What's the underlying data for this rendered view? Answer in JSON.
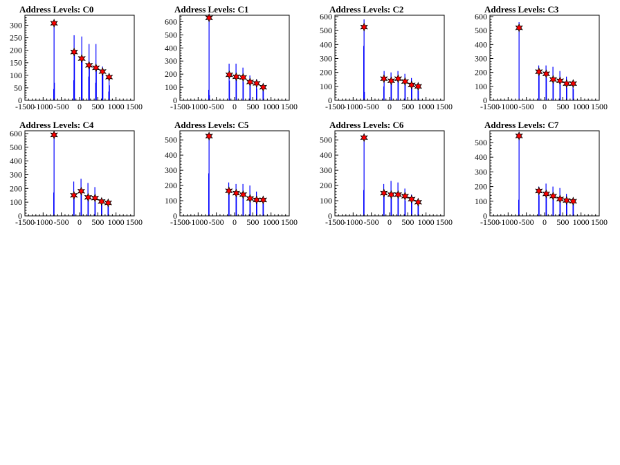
{
  "colors": {
    "histogram": "#0000ff",
    "marker": "#ff0000",
    "marker_outline": "#000000",
    "axes": "#000000"
  },
  "chart_data": [
    {
      "type": "bar",
      "title": "Address Levels: C0",
      "xlim": [
        -1500,
        1500
      ],
      "ylim": [
        0,
        340
      ],
      "x_ticks": [
        -1500,
        -1000,
        -500,
        0,
        500,
        1000,
        1500
      ],
      "x_tick_labels": [
        "-1500",
        "-1000",
        "-500",
        "0",
        "500",
        "1000",
        "1500"
      ],
      "y_ticks": [
        0,
        50,
        100,
        150,
        200,
        250,
        300
      ],
      "y_tick_labels": [
        "0",
        "50",
        "100",
        "150",
        "200",
        "250",
        "300"
      ],
      "histogram": [
        {
          "x": -710,
          "y": 45
        },
        {
          "x": -700,
          "y": 310
        },
        {
          "x": -690,
          "y": 70
        },
        {
          "x": -160,
          "y": 80
        },
        {
          "x": -150,
          "y": 260
        },
        {
          "x": -140,
          "y": 195
        },
        {
          "x": 50,
          "y": 160
        },
        {
          "x": 60,
          "y": 255
        },
        {
          "x": 70,
          "y": 170
        },
        {
          "x": 250,
          "y": 95
        },
        {
          "x": 260,
          "y": 225
        },
        {
          "x": 270,
          "y": 140
        },
        {
          "x": 440,
          "y": 70
        },
        {
          "x": 450,
          "y": 225
        },
        {
          "x": 460,
          "y": 135
        },
        {
          "x": 620,
          "y": 110
        },
        {
          "x": 630,
          "y": 135
        },
        {
          "x": 640,
          "y": 120
        },
        {
          "x": 800,
          "y": 35
        },
        {
          "x": 810,
          "y": 100
        },
        {
          "x": 820,
          "y": 60
        }
      ],
      "peaks": [
        {
          "x": -700,
          "y": 308
        },
        {
          "x": -150,
          "y": 193
        },
        {
          "x": 60,
          "y": 167
        },
        {
          "x": 260,
          "y": 140
        },
        {
          "x": 450,
          "y": 130
        },
        {
          "x": 630,
          "y": 115
        },
        {
          "x": 810,
          "y": 93
        }
      ]
    },
    {
      "type": "bar",
      "title": "Address Levels: C1",
      "xlim": [
        -1500,
        1500
      ],
      "ylim": [
        0,
        650
      ],
      "x_ticks": [
        -1500,
        -1000,
        -500,
        0,
        500,
        1000,
        1500
      ],
      "x_tick_labels": [
        "-1500",
        "-1000",
        "-500",
        "0",
        "500",
        "1000",
        "1500"
      ],
      "y_ticks": [
        0,
        100,
        200,
        300,
        400,
        500,
        600
      ],
      "y_tick_labels": [
        "0",
        "100",
        "200",
        "300",
        "400",
        "500",
        "600"
      ],
      "histogram": [
        {
          "x": -710,
          "y": 80
        },
        {
          "x": -700,
          "y": 640
        },
        {
          "x": -690,
          "y": 40
        },
        {
          "x": -150,
          "y": 280
        },
        {
          "x": -140,
          "y": 150
        },
        {
          "x": 40,
          "y": 280
        },
        {
          "x": 50,
          "y": 160
        },
        {
          "x": 230,
          "y": 250
        },
        {
          "x": 240,
          "y": 140
        },
        {
          "x": 420,
          "y": 190
        },
        {
          "x": 430,
          "y": 120
        },
        {
          "x": 600,
          "y": 160
        },
        {
          "x": 610,
          "y": 90
        },
        {
          "x": 780,
          "y": 120
        },
        {
          "x": 790,
          "y": 70
        }
      ],
      "peaks": [
        {
          "x": -700,
          "y": 630
        },
        {
          "x": -145,
          "y": 195
        },
        {
          "x": 45,
          "y": 180
        },
        {
          "x": 235,
          "y": 175
        },
        {
          "x": 425,
          "y": 140
        },
        {
          "x": 605,
          "y": 130
        },
        {
          "x": 785,
          "y": 100
        }
      ]
    },
    {
      "type": "bar",
      "title": "Address Levels: C2",
      "xlim": [
        -1500,
        1500
      ],
      "ylim": [
        0,
        610
      ],
      "x_ticks": [
        -1500,
        -1000,
        -500,
        0,
        500,
        1000,
        1500
      ],
      "x_tick_labels": [
        "-1500",
        "-1000",
        "-500",
        "0",
        "500",
        "1000",
        "1500"
      ],
      "y_ticks": [
        0,
        100,
        200,
        300,
        400,
        500,
        600
      ],
      "y_tick_labels": [
        "0",
        "100",
        "200",
        "300",
        "400",
        "500",
        "600"
      ],
      "histogram": [
        {
          "x": -710,
          "y": 390
        },
        {
          "x": -700,
          "y": 580
        },
        {
          "x": -690,
          "y": 60
        },
        {
          "x": -160,
          "y": 100
        },
        {
          "x": -150,
          "y": 210
        },
        {
          "x": 40,
          "y": 200
        },
        {
          "x": 50,
          "y": 120
        },
        {
          "x": 230,
          "y": 210
        },
        {
          "x": 240,
          "y": 130
        },
        {
          "x": 420,
          "y": 190
        },
        {
          "x": 430,
          "y": 110
        },
        {
          "x": 600,
          "y": 160
        },
        {
          "x": 610,
          "y": 90
        },
        {
          "x": 780,
          "y": 110
        },
        {
          "x": 790,
          "y": 70
        }
      ],
      "peaks": [
        {
          "x": -700,
          "y": 525
        },
        {
          "x": -155,
          "y": 155
        },
        {
          "x": 45,
          "y": 140
        },
        {
          "x": 235,
          "y": 155
        },
        {
          "x": 425,
          "y": 135
        },
        {
          "x": 605,
          "y": 110
        },
        {
          "x": 785,
          "y": 100
        }
      ]
    },
    {
      "type": "bar",
      "title": "Address Levels: C3",
      "xlim": [
        -1500,
        1500
      ],
      "ylim": [
        0,
        610
      ],
      "x_ticks": [
        -1500,
        -1000,
        -500,
        0,
        500,
        1000,
        1500
      ],
      "x_tick_labels": [
        "-1500",
        "-1000",
        "-500",
        "0",
        "500",
        "1000",
        "1500"
      ],
      "y_ticks": [
        0,
        100,
        200,
        300,
        400,
        500,
        600
      ],
      "y_tick_labels": [
        "0",
        "100",
        "200",
        "300",
        "400",
        "500",
        "600"
      ],
      "histogram": [
        {
          "x": -700,
          "y": 560
        },
        {
          "x": -160,
          "y": 250
        },
        {
          "x": -150,
          "y": 200
        },
        {
          "x": 40,
          "y": 250
        },
        {
          "x": 50,
          "y": 160
        },
        {
          "x": 230,
          "y": 240
        },
        {
          "x": 240,
          "y": 130
        },
        {
          "x": 420,
          "y": 210
        },
        {
          "x": 430,
          "y": 110
        },
        {
          "x": 600,
          "y": 170
        },
        {
          "x": 610,
          "y": 90
        },
        {
          "x": 780,
          "y": 140
        },
        {
          "x": 790,
          "y": 80
        }
      ],
      "peaks": [
        {
          "x": -700,
          "y": 520
        },
        {
          "x": -155,
          "y": 205
        },
        {
          "x": 45,
          "y": 190
        },
        {
          "x": 235,
          "y": 150
        },
        {
          "x": 425,
          "y": 140
        },
        {
          "x": 605,
          "y": 120
        },
        {
          "x": 785,
          "y": 120
        }
      ]
    },
    {
      "type": "bar",
      "title": "Address Levels: C4",
      "xlim": [
        -1500,
        1500
      ],
      "ylim": [
        0,
        620
      ],
      "x_ticks": [
        -1500,
        -1000,
        -500,
        0,
        500,
        1000,
        1500
      ],
      "x_tick_labels": [
        "-1500",
        "-1000",
        "-500",
        "0",
        "500",
        "1000",
        "1500"
      ],
      "y_ticks": [
        0,
        100,
        200,
        300,
        400,
        500,
        600
      ],
      "y_tick_labels": [
        "0",
        "100",
        "200",
        "300",
        "400",
        "500",
        "600"
      ],
      "histogram": [
        {
          "x": -710,
          "y": 170
        },
        {
          "x": -700,
          "y": 610
        },
        {
          "x": -160,
          "y": 250
        },
        {
          "x": -150,
          "y": 130
        },
        {
          "x": 40,
          "y": 270
        },
        {
          "x": 50,
          "y": 170
        },
        {
          "x": 230,
          "y": 240
        },
        {
          "x": 240,
          "y": 120
        },
        {
          "x": 420,
          "y": 210
        },
        {
          "x": 430,
          "y": 100
        },
        {
          "x": 600,
          "y": 130
        },
        {
          "x": 610,
          "y": 80
        },
        {
          "x": 780,
          "y": 110
        },
        {
          "x": 790,
          "y": 70
        }
      ],
      "peaks": [
        {
          "x": -700,
          "y": 590
        },
        {
          "x": -155,
          "y": 150
        },
        {
          "x": 45,
          "y": 180
        },
        {
          "x": 235,
          "y": 135
        },
        {
          "x": 425,
          "y": 130
        },
        {
          "x": 605,
          "y": 105
        },
        {
          "x": 785,
          "y": 95
        }
      ]
    },
    {
      "type": "bar",
      "title": "Address Levels: C5",
      "xlim": [
        -1500,
        1500
      ],
      "ylim": [
        0,
        560
      ],
      "x_ticks": [
        -1500,
        -1000,
        -500,
        0,
        500,
        1000,
        1500
      ],
      "x_tick_labels": [
        "-1500",
        "-1000",
        "-500",
        "0",
        "500",
        "1000",
        "1500"
      ],
      "y_ticks": [
        0,
        100,
        200,
        300,
        400,
        500
      ],
      "y_tick_labels": [
        "0",
        "100",
        "200",
        "300",
        "400",
        "500"
      ],
      "histogram": [
        {
          "x": -710,
          "y": 280
        },
        {
          "x": -700,
          "y": 540
        },
        {
          "x": -160,
          "y": 220
        },
        {
          "x": -150,
          "y": 150
        },
        {
          "x": 40,
          "y": 210
        },
        {
          "x": 50,
          "y": 140
        },
        {
          "x": 230,
          "y": 210
        },
        {
          "x": 240,
          "y": 130
        },
        {
          "x": 420,
          "y": 200
        },
        {
          "x": 430,
          "y": 110
        },
        {
          "x": 600,
          "y": 160
        },
        {
          "x": 610,
          "y": 90
        },
        {
          "x": 780,
          "y": 120
        },
        {
          "x": 790,
          "y": 80
        }
      ],
      "peaks": [
        {
          "x": -700,
          "y": 525
        },
        {
          "x": -155,
          "y": 165
        },
        {
          "x": 45,
          "y": 150
        },
        {
          "x": 235,
          "y": 140
        },
        {
          "x": 425,
          "y": 115
        },
        {
          "x": 605,
          "y": 105
        },
        {
          "x": 785,
          "y": 105
        }
      ]
    },
    {
      "type": "bar",
      "title": "Address Levels: C6",
      "xlim": [
        -1500,
        1500
      ],
      "ylim": [
        0,
        560
      ],
      "x_ticks": [
        -1500,
        -1000,
        -500,
        0,
        500,
        1000,
        1500
      ],
      "x_tick_labels": [
        "-1500",
        "-1000",
        "-500",
        "0",
        "500",
        "1000",
        "1500"
      ],
      "y_ticks": [
        0,
        100,
        200,
        300,
        400,
        500
      ],
      "y_tick_labels": [
        "0",
        "100",
        "200",
        "300",
        "400",
        "500"
      ],
      "histogram": [
        {
          "x": -710,
          "y": 170
        },
        {
          "x": -700,
          "y": 540
        },
        {
          "x": -160,
          "y": 210
        },
        {
          "x": -150,
          "y": 140
        },
        {
          "x": 40,
          "y": 230
        },
        {
          "x": 50,
          "y": 150
        },
        {
          "x": 230,
          "y": 220
        },
        {
          "x": 240,
          "y": 130
        },
        {
          "x": 420,
          "y": 180
        },
        {
          "x": 430,
          "y": 100
        },
        {
          "x": 600,
          "y": 140
        },
        {
          "x": 610,
          "y": 90
        },
        {
          "x": 780,
          "y": 110
        },
        {
          "x": 790,
          "y": 70
        }
      ],
      "peaks": [
        {
          "x": -700,
          "y": 515
        },
        {
          "x": -155,
          "y": 150
        },
        {
          "x": 45,
          "y": 140
        },
        {
          "x": 235,
          "y": 140
        },
        {
          "x": 425,
          "y": 130
        },
        {
          "x": 605,
          "y": 110
        },
        {
          "x": 785,
          "y": 90
        }
      ]
    },
    {
      "type": "bar",
      "title": "Address Levels: C7",
      "xlim": [
        -1500,
        1500
      ],
      "ylim": [
        0,
        580
      ],
      "x_ticks": [
        -1500,
        -1000,
        -500,
        0,
        500,
        1000,
        1500
      ],
      "x_tick_labels": [
        "-1500",
        "-1000",
        "-500",
        "0",
        "500",
        "1000",
        "1500"
      ],
      "y_ticks": [
        0,
        100,
        200,
        300,
        400,
        500
      ],
      "y_tick_labels": [
        "0",
        "100",
        "200",
        "300",
        "400",
        "500"
      ],
      "histogram": [
        {
          "x": -710,
          "y": 110
        },
        {
          "x": -700,
          "y": 570
        },
        {
          "x": -160,
          "y": 200
        },
        {
          "x": -150,
          "y": 140
        },
        {
          "x": 40,
          "y": 220
        },
        {
          "x": 50,
          "y": 150
        },
        {
          "x": 230,
          "y": 200
        },
        {
          "x": 240,
          "y": 130
        },
        {
          "x": 420,
          "y": 190
        },
        {
          "x": 430,
          "y": 100
        },
        {
          "x": 600,
          "y": 150
        },
        {
          "x": 610,
          "y": 90
        },
        {
          "x": 780,
          "y": 120
        },
        {
          "x": 790,
          "y": 80
        }
      ],
      "peaks": [
        {
          "x": -700,
          "y": 545
        },
        {
          "x": -155,
          "y": 170
        },
        {
          "x": 45,
          "y": 150
        },
        {
          "x": 235,
          "y": 135
        },
        {
          "x": 425,
          "y": 115
        },
        {
          "x": 605,
          "y": 105
        },
        {
          "x": 785,
          "y": 100
        }
      ]
    }
  ]
}
